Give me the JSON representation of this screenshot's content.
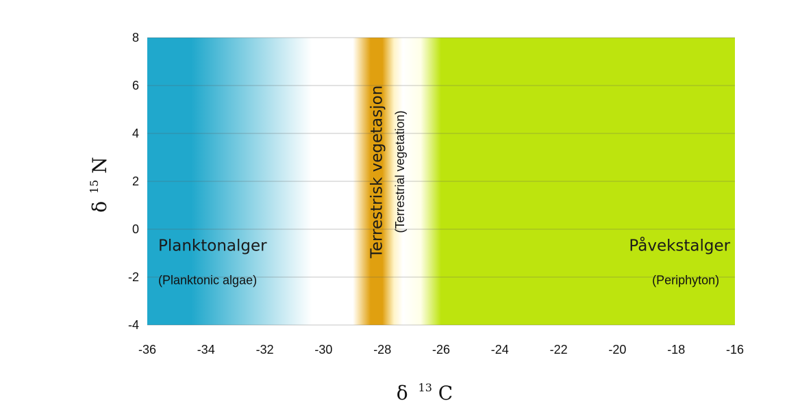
{
  "chart_data": {
    "type": "area",
    "title": "",
    "xlabel": "δ 13C",
    "xlabel_parts": {
      "symbol": "δ",
      "superscript": "13",
      "element": "C"
    },
    "ylabel": "δ15N",
    "ylabel_parts": {
      "symbol": "δ",
      "superscript": "15",
      "element": "N"
    },
    "xlim": [
      -36,
      -16
    ],
    "ylim": [
      -4,
      8
    ],
    "xticks": [
      -36,
      -34,
      -32,
      -30,
      -28,
      -26,
      -24,
      -22,
      -20,
      -18,
      -16
    ],
    "yticks": [
      8,
      6,
      4,
      2,
      0,
      -2,
      -4
    ],
    "grid": "horizontal",
    "regions": [
      {
        "name": "Planktonalger",
        "subtitle": "(Planktonic algae)",
        "x_range": [
          -36,
          -30
        ],
        "color": "#20a8cc",
        "label_x": -36,
        "label_y_main": -0.9,
        "label_y_sub": -2.3
      },
      {
        "name": "Terrestrisk vegetasjon",
        "subtitle": "(Terrestrial  vegetation)",
        "x_range": [
          -29,
          -27.3
        ],
        "peak_x": -28.2,
        "color": "#e0a010",
        "label_x_main": -28.2,
        "label_x_sub": -27.4,
        "label_y_center": 2.4
      },
      {
        "name": "Påvekstalger",
        "subtitle": "(Periphyton)",
        "x_range": [
          -26,
          -16
        ],
        "color": "#bde40e",
        "label_x": -16.3,
        "label_y_main": -0.9,
        "label_y_sub": -2.3
      }
    ],
    "colors": {
      "plankton": "#20a8cc",
      "terrestrial": "#e0a010",
      "periphyton": "#bde40e"
    }
  }
}
